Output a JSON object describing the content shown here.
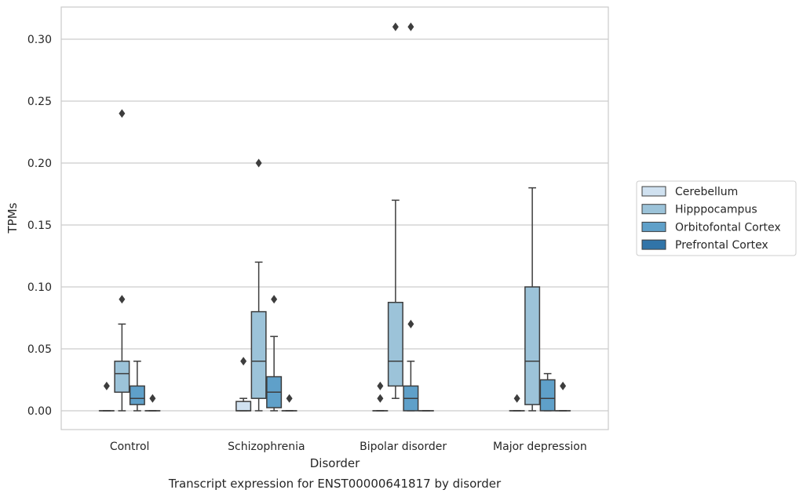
{
  "chart_data": {
    "type": "box",
    "xlabel": "Disorder",
    "ylabel": "TPMs",
    "caption": "Transcript expression for ENST00000641817 by disorder",
    "ylim": [
      -0.015,
      0.325
    ],
    "yticks": [
      0.0,
      0.05,
      0.1,
      0.15,
      0.2,
      0.25,
      0.3
    ],
    "ytick_labels": [
      "0.00",
      "0.05",
      "0.10",
      "0.15",
      "0.20",
      "0.25",
      "0.30"
    ],
    "grid": "horizontal",
    "legend_position": "right",
    "categories": [
      "Control",
      "Schizophrenia",
      "Bipolar disorder",
      "Major depression"
    ],
    "series": [
      {
        "name": "Cerebellum",
        "color": "#d0e1f0",
        "boxes": [
          {
            "whislo": 0,
            "q1": 0,
            "med": 0,
            "q3": 0,
            "whishi": 0,
            "fliers": [
              0.02
            ]
          },
          {
            "whislo": 0,
            "q1": 0,
            "med": 0,
            "q3": 0.0075,
            "whishi": 0.01,
            "fliers": [
              0.04
            ]
          },
          {
            "whislo": 0,
            "q1": 0,
            "med": 0,
            "q3": 0,
            "whishi": 0,
            "fliers": [
              0.01,
              0.02
            ]
          },
          {
            "whislo": 0,
            "q1": 0,
            "med": 0,
            "q3": 0,
            "whishi": 0,
            "fliers": [
              0.01
            ]
          }
        ]
      },
      {
        "name": "Hipppocampus",
        "color": "#9cc3d9",
        "boxes": [
          {
            "whislo": 0,
            "q1": 0.015,
            "med": 0.03,
            "q3": 0.04,
            "whishi": 0.07,
            "fliers": [
              0.09,
              0.24
            ]
          },
          {
            "whislo": 0,
            "q1": 0.01,
            "med": 0.04,
            "q3": 0.08,
            "whishi": 0.12,
            "fliers": [
              0.2
            ]
          },
          {
            "whislo": 0.01,
            "q1": 0.02,
            "med": 0.04,
            "q3": 0.0875,
            "whishi": 0.17,
            "fliers": [
              0.31
            ]
          },
          {
            "whislo": 0,
            "q1": 0.005,
            "med": 0.04,
            "q3": 0.1,
            "whishi": 0.18,
            "fliers": []
          }
        ]
      },
      {
        "name": "Orbitofontal Cortex",
        "color": "#5fa0c9",
        "boxes": [
          {
            "whislo": 0,
            "q1": 0.005,
            "med": 0.01,
            "q3": 0.02,
            "whishi": 0.04,
            "fliers": []
          },
          {
            "whislo": 0,
            "q1": 0.0025,
            "med": 0.015,
            "q3": 0.0275,
            "whishi": 0.06,
            "fliers": [
              0.09
            ]
          },
          {
            "whislo": 0,
            "q1": 0,
            "med": 0.01,
            "q3": 0.02,
            "whishi": 0.04,
            "fliers": [
              0.07,
              0.31
            ]
          },
          {
            "whislo": 0,
            "q1": 0,
            "med": 0.01,
            "q3": 0.025,
            "whishi": 0.03,
            "fliers": []
          }
        ]
      },
      {
        "name": "Prefrontal Cortex",
        "color": "#3174a8",
        "boxes": [
          {
            "whislo": 0,
            "q1": 0,
            "med": 0,
            "q3": 0,
            "whishi": 0,
            "fliers": [
              0.01
            ]
          },
          {
            "whislo": 0,
            "q1": 0,
            "med": 0,
            "q3": 0,
            "whishi": 0,
            "fliers": [
              0.01
            ]
          },
          {
            "whislo": 0,
            "q1": 0,
            "med": 0,
            "q3": 0,
            "whishi": 0,
            "fliers": []
          },
          {
            "whislo": 0,
            "q1": 0,
            "med": 0,
            "q3": 0,
            "whishi": 0,
            "fliers": [
              0.02
            ]
          }
        ]
      }
    ]
  }
}
